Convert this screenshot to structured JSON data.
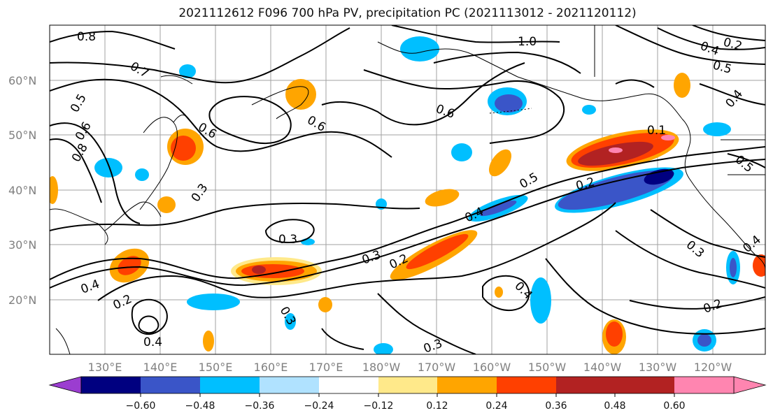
{
  "title": "2021112612 F096 700 hPa PV, precipitation PC (2021113012 - 2021120112)",
  "map": {
    "lat_labels": [
      "60°N",
      "50°N",
      "40°N",
      "30°N",
      "20°N"
    ],
    "lon_labels": [
      "130°E",
      "140°E",
      "150°E",
      "160°E",
      "170°E",
      "180°W",
      "170°W",
      "160°W",
      "150°W",
      "140°W",
      "130°W",
      "120°W"
    ],
    "contour_labels": [
      "0.8",
      "0.7",
      "0.5",
      "0.6",
      "0.8",
      "0.3",
      "0.6",
      "0.6",
      "0.3",
      "0.3",
      "0.4",
      "0.2",
      "0.4",
      "0.4",
      "0.3",
      "0.2",
      "0.5",
      "0.4",
      "0.6",
      "1.0",
      "0.5",
      "0.4",
      "0.2",
      "0.3",
      "0.2",
      "0.3",
      "0.4",
      "0.1",
      "0.4",
      "0.5",
      "0.2"
    ]
  },
  "colorbar": {
    "ticks": [
      "−0.60",
      "−0.48",
      "−0.36",
      "−0.24",
      "−0.12",
      "0.12",
      "0.24",
      "0.36",
      "0.48",
      "0.60"
    ],
    "colors": [
      "#9b3dd0",
      "#000080",
      "#3a55c8",
      "#00bfff",
      "#b0e2ff",
      "#ffffff",
      "#ffe98a",
      "#ffa500",
      "#ff4000",
      "#b22222",
      "#ff85b0"
    ]
  },
  "colors": {
    "neg_strong": "#000080",
    "neg_mid": "#3a55c8",
    "neg_light": "#00bfff",
    "neg_pale": "#b0e2ff",
    "pos_pale": "#ffe98a",
    "pos_mid": "#ffa500",
    "pos_strong": "#ff4000",
    "pos_dark": "#b22222",
    "pos_max": "#ff85b0"
  }
}
